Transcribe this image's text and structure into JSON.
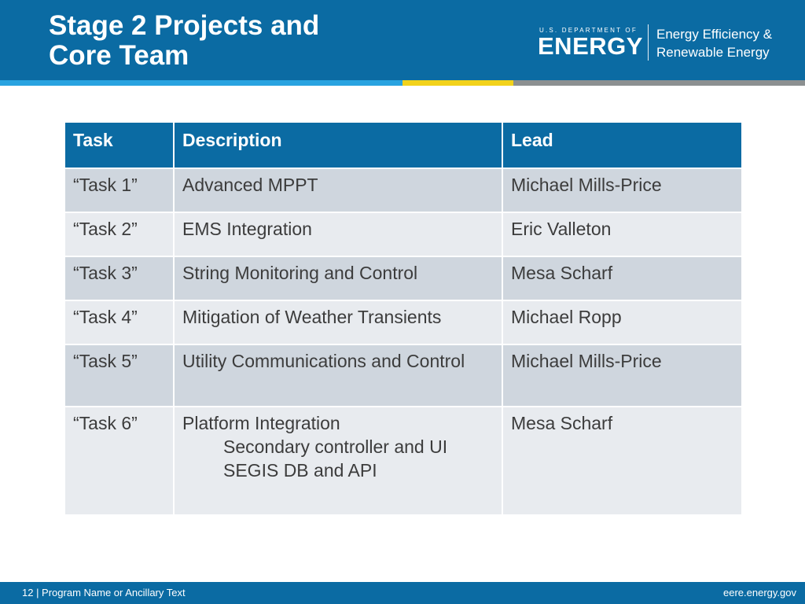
{
  "slide": {
    "title_line1": "Stage 2 Projects and",
    "title_line2": "Core Team"
  },
  "logo": {
    "dept_small": "U.S. DEPARTMENT OF",
    "dept_big": "ENERGY",
    "office_line1": "Energy Efficiency &",
    "office_line2": "Renewable Energy"
  },
  "colors": {
    "brand_blue": "#0b6ba3",
    "stripe_light_blue": "#29a3e0",
    "stripe_yellow": "#f2d21b",
    "stripe_gray": "#8c9091",
    "row_dark": "#cfd6de",
    "row_light": "#e8ebef"
  },
  "table": {
    "headers": [
      "Task",
      "Description",
      "Lead"
    ],
    "rows": [
      {
        "task": "“Task 1”",
        "description": "Advanced MPPT",
        "lead": "Michael Mills-Price"
      },
      {
        "task": "“Task 2”",
        "description": "EMS Integration",
        "lead": "Eric Valleton"
      },
      {
        "task": "“Task 3”",
        "description": "String Monitoring and Control",
        "lead": "Mesa Scharf"
      },
      {
        "task": "“Task 4”",
        "description": "Mitigation of Weather Transients",
        "lead": "Michael Ropp"
      },
      {
        "task": "“Task 5”",
        "description": "Utility Communications and Control",
        "lead": "Michael Mills-Price"
      },
      {
        "task": "“Task 6”",
        "description": "Platform Integration",
        "sub_items": [
          "Secondary controller and UI",
          "SEGIS DB and API"
        ],
        "lead": "Mesa Scharf"
      }
    ]
  },
  "footer": {
    "left_text": "12 | Program Name or Ancillary Text",
    "right_text": "eere.energy.gov"
  }
}
